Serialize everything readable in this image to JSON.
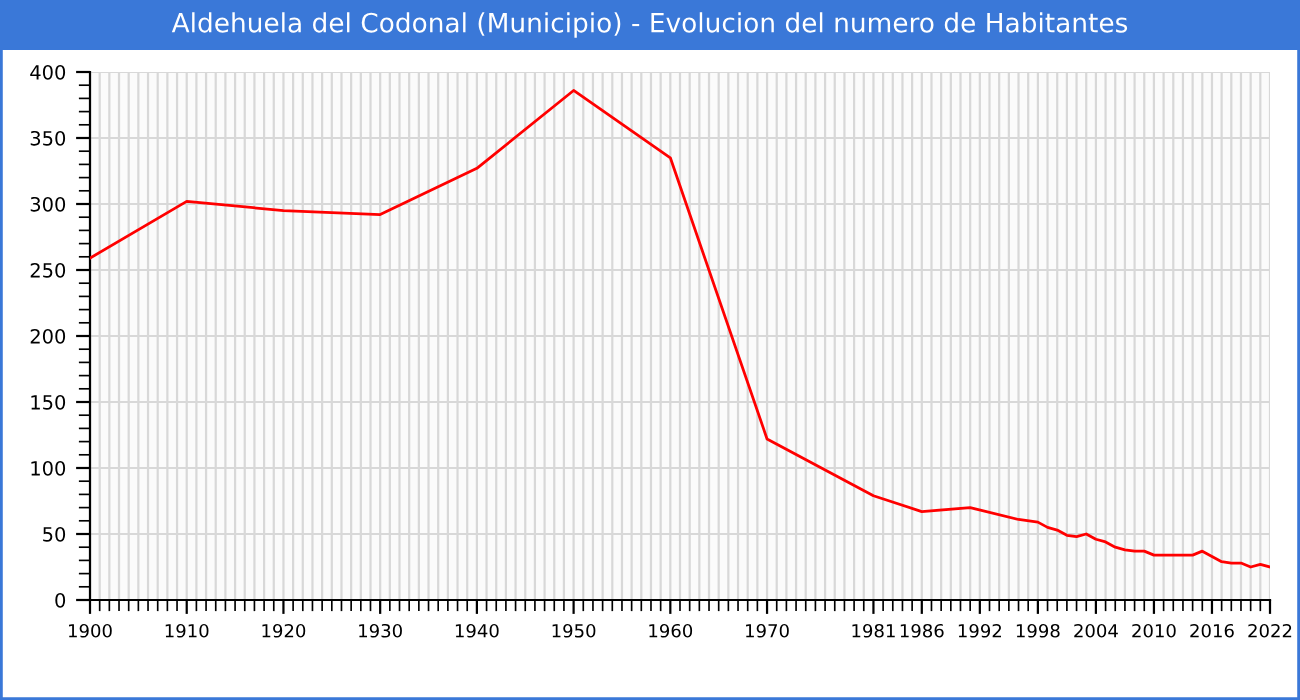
{
  "chart_data": {
    "type": "line",
    "title": "Aldehuela del Codonal (Municipio) - Evolucion del numero de Habitantes",
    "x": [
      1900,
      1910,
      1920,
      1930,
      1940,
      1950,
      1960,
      1970,
      1981,
      1986,
      1991,
      1996,
      1998,
      1999,
      2000,
      2001,
      2002,
      2003,
      2004,
      2005,
      2006,
      2007,
      2008,
      2009,
      2010,
      2011,
      2012,
      2013,
      2014,
      2015,
      2016,
      2017,
      2018,
      2019,
      2020,
      2021,
      2022
    ],
    "series": [
      {
        "color": "#ff0000",
        "values": [
          259,
          302,
          295,
          292,
          327,
          386,
          335,
          122,
          79,
          67,
          70,
          61,
          59,
          55,
          53,
          49,
          48,
          50,
          46,
          44,
          40,
          38,
          37,
          37,
          34,
          34,
          34,
          34,
          34,
          37,
          33,
          29,
          28,
          28,
          25,
          27,
          25
        ]
      }
    ],
    "xlim": [
      1900,
      2022
    ],
    "xticks": [
      1900,
      1910,
      1920,
      1930,
      1940,
      1950,
      1960,
      1970,
      1981,
      1986,
      1992,
      1998,
      2004,
      2010,
      2016,
      2022
    ],
    "ylim": [
      0,
      400
    ],
    "yticks": [
      0,
      50,
      100,
      150,
      200,
      250,
      300,
      350,
      400
    ],
    "grid": true,
    "marker": "none",
    "line_style": "solid"
  }
}
